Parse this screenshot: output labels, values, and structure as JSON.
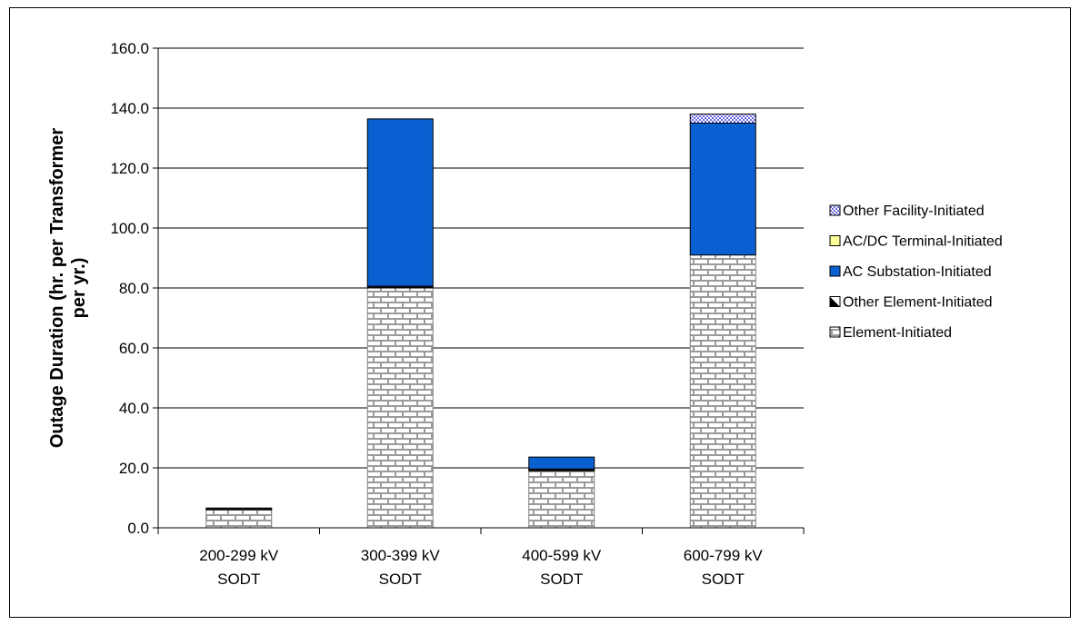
{
  "chart_data": {
    "type": "bar",
    "stacked": true,
    "categories": [
      [
        "200-299 kV",
        "SODT"
      ],
      [
        "300-399 kV",
        "SODT"
      ],
      [
        "400-599 kV",
        "SODT"
      ],
      [
        "600-799 kV",
        "SODT"
      ]
    ],
    "ylabel": [
      "Outage Duration (hr. per Transformer",
      "per  yr.)"
    ],
    "ylim": [
      0,
      160
    ],
    "yticks": [
      "0.0",
      "20.0",
      "40.0",
      "60.0",
      "80.0",
      "100.0",
      "120.0",
      "140.0",
      "160.0"
    ],
    "grid": true,
    "legend_position": "right",
    "series": [
      {
        "name": "Element-Initiated",
        "values": [
          6.0,
          80.0,
          19.0,
          91.0
        ],
        "pattern": "brick",
        "color": "#c8c8c8"
      },
      {
        "name": "Other Element-Initiated",
        "values": [
          0.6,
          0.6,
          0.6,
          0.0
        ],
        "pattern": "half",
        "color": "#000000"
      },
      {
        "name": "AC Substation-Initiated",
        "values": [
          0.0,
          55.8,
          4.0,
          44.0
        ],
        "pattern": "solid",
        "color": "#0a60d0"
      },
      {
        "name": "AC/DC Terminal-Initiated",
        "values": [
          0.0,
          0.0,
          0.0,
          0.0
        ],
        "pattern": "solid",
        "color": "#ffff99"
      },
      {
        "name": "Other Facility-Initiated",
        "values": [
          0.0,
          0.0,
          0.0,
          3.0
        ],
        "pattern": "dots",
        "color": "#8080ff"
      }
    ],
    "legend_order": [
      "Other Facility-Initiated",
      "AC/DC Terminal-Initiated",
      "AC Substation-Initiated",
      "Other Element-Initiated",
      "Element-Initiated"
    ]
  }
}
